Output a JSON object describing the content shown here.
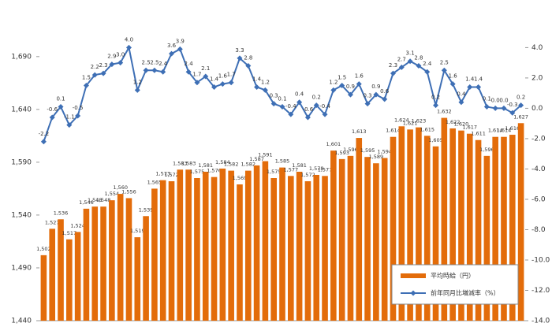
{
  "chart_data": {
    "type": "bar-line",
    "categories": [
      null,
      null,
      null,
      null,
      null,
      null,
      null,
      null,
      null,
      null,
      null,
      null,
      null,
      null,
      null,
      null,
      null,
      null,
      null,
      null,
      null,
      null,
      null,
      null,
      null,
      null,
      null,
      null,
      null,
      null,
      null,
      null,
      null,
      null,
      null,
      null,
      null,
      null,
      null,
      null,
      null,
      null,
      null,
      null,
      null,
      null,
      null,
      null,
      null,
      null,
      null,
      null,
      null,
      null,
      null,
      null,
      null
    ],
    "series": [
      {
        "name": "平均時給（円）",
        "type": "bar",
        "axis": "y",
        "color": "#e36c0a",
        "values": [
          1502,
          1527,
          1536,
          1517,
          1524,
          1546,
          1548,
          1548,
          1554,
          1560,
          1556,
          1519,
          1539,
          1565,
          1573,
          1572,
          1583,
          1583,
          1575,
          1581,
          1576,
          1584,
          1582,
          1569,
          1582,
          1587,
          1591,
          1575,
          1585,
          1577,
          1581,
          1572,
          1578,
          1577,
          1601,
          1593,
          1596,
          1613,
          1595,
          1589,
          1594,
          1614,
          1624,
          1621,
          1623,
          1615,
          1605,
          1632,
          1622,
          1620,
          1617,
          1611,
          1596,
          1614,
          1614,
          1616,
          1627
        ],
        "value_labels": [
          "1,502",
          "1,527",
          "1,536",
          "1,517",
          "1,524",
          "1,546",
          "1,548",
          "1,548",
          "1,554",
          "1,560",
          "1,556",
          "1,519",
          "1,539",
          "1,565",
          "1,573",
          "1,572",
          "1,583",
          "1,583",
          "1,575",
          "1,581",
          "1,576",
          "1,584",
          "1,582",
          "1,569",
          "1,582",
          "1,587",
          "1,591",
          "1,575",
          "1,585",
          "1,577",
          "1,581",
          "1,572",
          "1,578",
          "1,577",
          "1,601",
          "1,593",
          "1,596",
          "1,613",
          "1,595",
          "1,589",
          "1,594",
          "1,614",
          "1,624",
          "1,621",
          "1,623",
          "1,615",
          "1,605",
          "1,632",
          "1,622",
          "1,620",
          "1,617",
          "1,611",
          "1,596",
          "1,614",
          "1,614",
          "1,616",
          "1,627"
        ]
      },
      {
        "name": "前年同月比増減率（%）",
        "type": "line",
        "axis": "y2",
        "color": "#3e6fb5",
        "values": [
          -2.2,
          -0.6,
          0.1,
          -1.1,
          -0.5,
          1.5,
          2.2,
          2.3,
          2.9,
          3.0,
          4.0,
          1.2,
          2.5,
          2.5,
          2.4,
          3.6,
          3.9,
          2.4,
          1.7,
          2.1,
          1.4,
          1.6,
          1.7,
          3.3,
          2.8,
          1.4,
          1.2,
          0.3,
          0.1,
          -0.4,
          0.4,
          -0.6,
          0.2,
          -0.4,
          1.2,
          1.5,
          0.9,
          1.6,
          0.3,
          0.9,
          0.6,
          2.3,
          2.7,
          3.1,
          2.8,
          2.4,
          0.2,
          2.5,
          1.6,
          0.4,
          1.4,
          1.4,
          0.1,
          0.0,
          0.0,
          -0.3,
          0.2
        ],
        "value_labels": [
          "-2.2",
          "-0.6",
          "0.1",
          "-1.1",
          "-0.5",
          "1.5",
          "2.2",
          "2.3",
          "2.9",
          "3.0",
          "4.0",
          "1.2",
          "2.5",
          "2.5",
          "2.4",
          "3.6",
          "3.9",
          "2.4",
          "1.7",
          "2.1",
          "1.4",
          "1.6",
          "1.7",
          "3.3",
          "2.8",
          "1.4",
          "1.2",
          "0.3",
          "0.1",
          "-0.4",
          "0.4",
          "-0.6",
          "0.2",
          "-0.4",
          "1.2",
          "1.5",
          "0.9",
          "1.6",
          "0.3",
          "0.9",
          "0.6",
          "2.3",
          "2.7",
          "3.1",
          "2.8",
          "2.4",
          "0.2",
          "2.5",
          "1.6",
          "0.4",
          "1.4",
          "1.4",
          "0.1",
          "0.0",
          "0.0",
          "-0.3",
          "0.2"
        ]
      }
    ],
    "ylim": [
      1440,
      1710
    ],
    "yticks": [
      {
        "value": 1440,
        "label": "1,440"
      },
      {
        "value": 1490,
        "label": "1,490"
      },
      {
        "value": 1540,
        "label": "1,540"
      },
      {
        "value": 1590,
        "label": "1,590"
      },
      {
        "value": 1640,
        "label": "1,640"
      },
      {
        "value": 1690,
        "label": "1,690"
      }
    ],
    "y2lim": [
      -14,
      4.8
    ],
    "y2ticks": [
      {
        "value": -14,
        "label": "-14.0"
      },
      {
        "value": -12,
        "label": "-12.0"
      },
      {
        "value": -10,
        "label": "-10.0"
      },
      {
        "value": -8,
        "label": "-8.0"
      },
      {
        "value": -6,
        "label": "-6.0"
      },
      {
        "value": -4,
        "label": "-4.0"
      },
      {
        "value": -2,
        "label": "-2.0"
      },
      {
        "value": 0,
        "label": "0.0"
      },
      {
        "value": 2,
        "label": "2.0"
      },
      {
        "value": 4,
        "label": "4.0"
      }
    ],
    "legend": "lower right"
  }
}
